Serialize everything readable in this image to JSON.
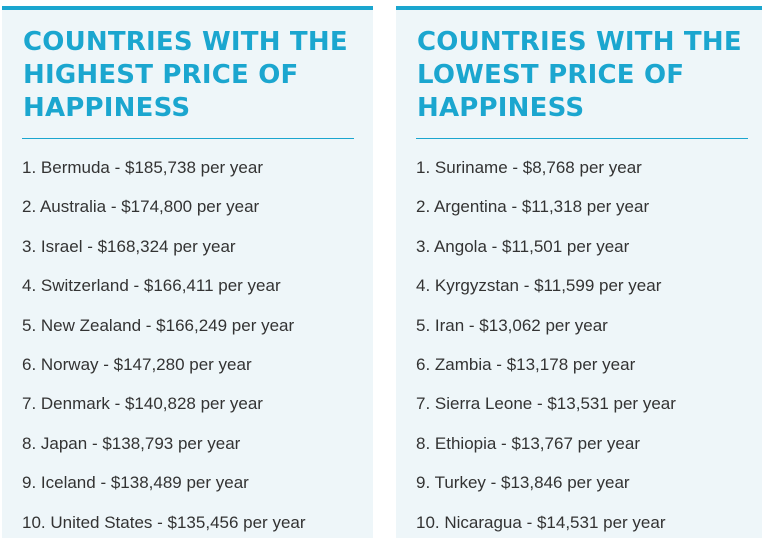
{
  "panels": [
    {
      "title": "COUNTRIES WITH THE HIGHEST PRICE OF HAPPINESS",
      "items": [
        "1. Bermuda - $185,738 per year",
        "2. Australia - $174,800 per year",
        "3. Israel - $168,324 per year",
        "4. Switzerland - $166,411 per year",
        "5. New Zealand - $166,249 per year",
        "6. Norway - $147,280 per year",
        "7. Denmark - $140,828 per year",
        "8. Japan - $138,793 per year",
        "9. Iceland - $138,489 per year",
        "10. United States - $135,456 per year"
      ]
    },
    {
      "title": "COUNTRIES WITH THE LOWEST PRICE OF HAPPINESS",
      "items": [
        "1. Suriname - $8,768 per year",
        "2. Argentina - $11,318 per year",
        "3. Angola - $11,501 per year",
        "4. Kyrgyzstan - $11,599 per year",
        "5. Iran - $13,062 per year",
        "6. Zambia - $13,178 per year",
        "7. Sierra Leone - $13,531 per year",
        "8. Ethiopia - $13,767 per year",
        "9. Turkey - $13,846 per year",
        "10. Nicaragua - $14,531 per year"
      ]
    }
  ],
  "colors": {
    "accent": "#1ba6cf",
    "panel_bg": "#eef6f9",
    "text": "#333333"
  }
}
